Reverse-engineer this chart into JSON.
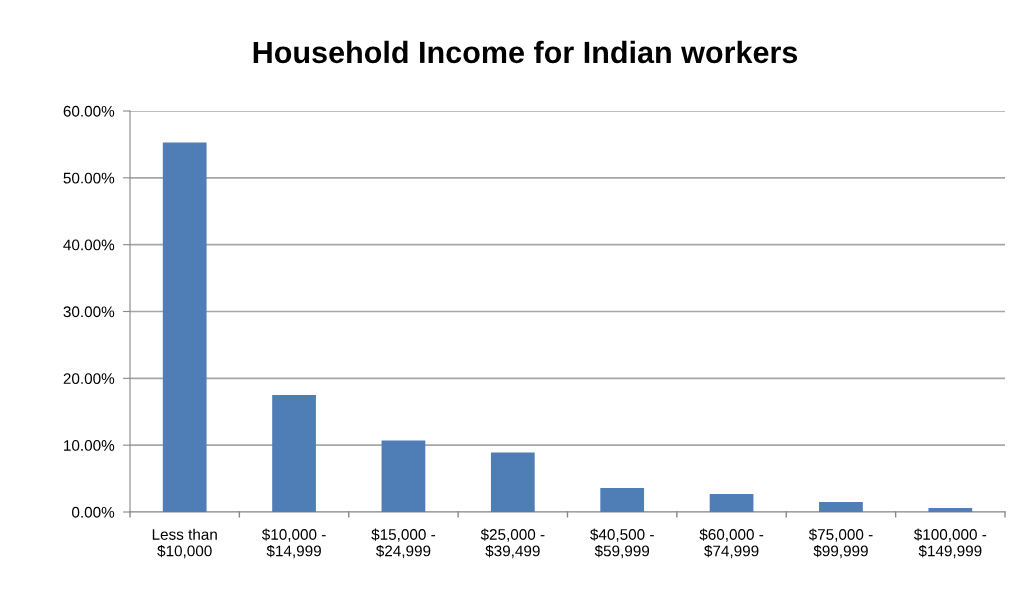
{
  "chart_data": {
    "type": "bar",
    "title": "Household Income for Indian workers",
    "categories": [
      "Less than\n$10,000",
      "$10,000 -\n$14,999",
      "$15,000 -\n$24,999",
      "$25,000 -\n$39,499",
      "$40,500 -\n$59,999",
      "$60,000 -\n$74,999",
      "$75,000 -\n$99,999",
      "$100,000 -\n$149,999"
    ],
    "values": [
      55.3,
      17.5,
      10.7,
      8.9,
      3.6,
      2.7,
      1.5,
      0.6
    ],
    "color": "#4f7db5",
    "ylim": [
      0,
      60
    ],
    "yticks": [
      {
        "value": 0,
        "label": "0.00%"
      },
      {
        "value": 10,
        "label": "10.00%"
      },
      {
        "value": 20,
        "label": "20.00%"
      },
      {
        "value": 30,
        "label": "30.00%"
      },
      {
        "value": 40,
        "label": "40.00%"
      },
      {
        "value": 50,
        "label": "50.00%"
      },
      {
        "value": 60,
        "label": "60.00%"
      }
    ],
    "grid": "y",
    "legend": false
  }
}
